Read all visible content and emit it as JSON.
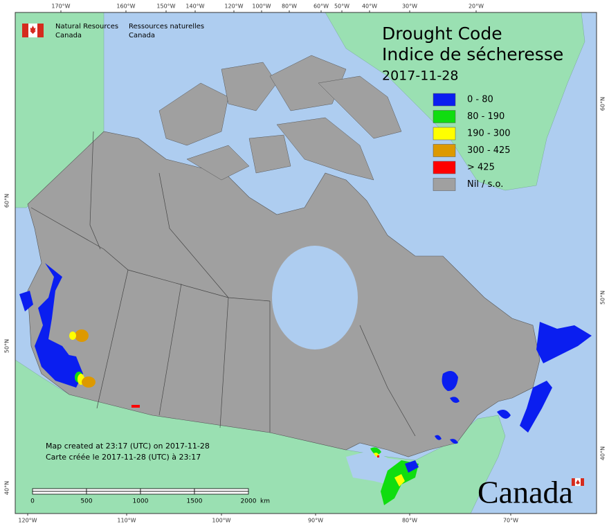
{
  "header": {
    "org_en_1": "Natural Resources",
    "org_en_2": "Canada",
    "org_fr_1": "Ressources naturelles",
    "org_fr_2": "Canada"
  },
  "title": {
    "line1": "Drought Code",
    "line2": "Indice de sécheresse",
    "date": "2017-11-28"
  },
  "legend": [
    {
      "label": "0 - 80",
      "color": "#0a1ef0"
    },
    {
      "label": "80 - 190",
      "color": "#10dd10"
    },
    {
      "label": "190 - 300",
      "color": "#ffff00"
    },
    {
      "label": "300 - 425",
      "color": "#dd9900"
    },
    {
      "label": "> 425",
      "color": "#ff0000"
    },
    {
      "label": "Nil / s.o.",
      "color": "#a0a0a0"
    }
  ],
  "graticule": {
    "top": [
      "170°W",
      "160°W",
      "150°W",
      "140°W",
      "120°W",
      "100°W",
      "80°W",
      "60°W",
      "50°W",
      "40°W",
      "30°W",
      "20°W"
    ],
    "bottom": [
      "120°W",
      "110°W",
      "100°W",
      "90°W",
      "80°W",
      "70°W"
    ],
    "left": [
      "60°N",
      "50°N",
      "40°N"
    ],
    "right": [
      "60°N",
      "50°N",
      "40°N"
    ]
  },
  "scale_bar": {
    "ticks": [
      0,
      500,
      1000,
      1500,
      2000
    ],
    "unit": "km"
  },
  "footer": {
    "line1": "Map created at 23:17 (UTC) on 2017-11-28",
    "line2": "Carte créée le 2017-11-28 (UTC) à 23:17"
  },
  "wordmark": "Canada"
}
